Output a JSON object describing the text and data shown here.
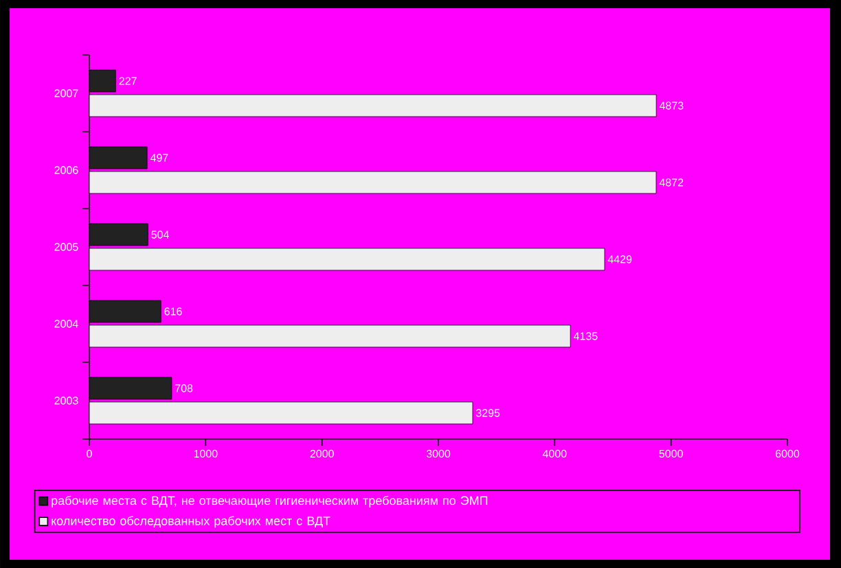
{
  "chart_data": {
    "type": "bar",
    "orientation": "horizontal",
    "categories": [
      "2007",
      "2006",
      "2005",
      "2004",
      "2003"
    ],
    "series": [
      {
        "name": "рабочие места с ВДТ, не отвечающие гигиеническим требованиям по ЭМП",
        "color": "#222222",
        "values": [
          227,
          497,
          504,
          616,
          708
        ]
      },
      {
        "name": "количество обследованных рабочих мест с ВДТ",
        "color": "#eeeeee",
        "values": [
          4873,
          4872,
          4429,
          4135,
          3295
        ]
      }
    ],
    "xlim": [
      0,
      6000
    ],
    "xticks": [
      0,
      1000,
      2000,
      3000,
      4000,
      5000,
      6000
    ],
    "data_labels": true,
    "legend": "bottom"
  }
}
